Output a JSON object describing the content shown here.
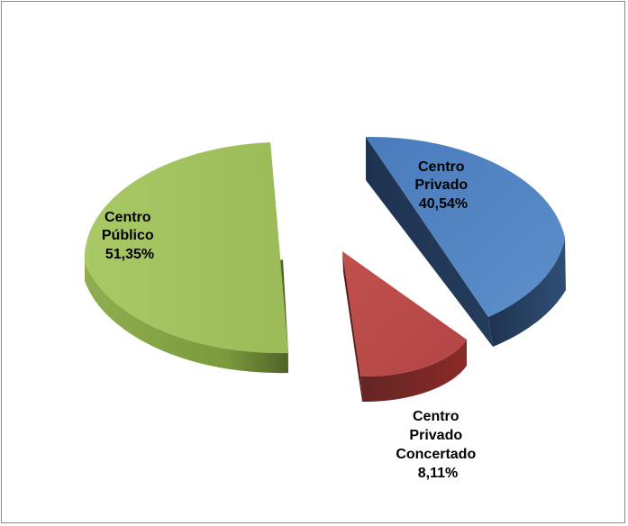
{
  "chart_data": {
    "type": "pie",
    "style": "3d-exploded",
    "slices": [
      {
        "key": "publico",
        "label": "Centro Público",
        "label_lines": [
          "Centro",
          "Público"
        ],
        "value_text": "51,35%",
        "value": 51.35,
        "color": "#9bbb59",
        "side_color": "#7a9a3e",
        "dark_color": "#4f6228"
      },
      {
        "key": "privado",
        "label": "Centro Privado",
        "label_lines": [
          "Centro",
          "Privado"
        ],
        "value_text": "40,54%",
        "value": 40.54,
        "color": "#4f81bd",
        "side_color": "#2f4f75",
        "dark_color": "#1f3350"
      },
      {
        "key": "concertado",
        "label": "Centro Privado Concertado",
        "label_lines": [
          "Centro",
          "Privado",
          "Concertado"
        ],
        "value_text": "8,11%",
        "value": 8.11,
        "color": "#c0504d",
        "side_color": "#8b2a28",
        "dark_color": "#632523"
      }
    ]
  }
}
